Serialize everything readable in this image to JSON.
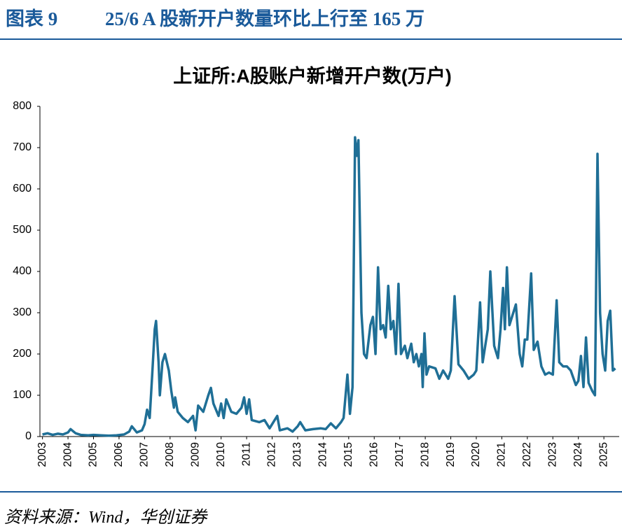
{
  "header": {
    "figure": "图表 9",
    "title": "25/6 A 股新开户数量环比上行至 165 万"
  },
  "chart_data": {
    "type": "line",
    "title": "上证所:A股账户新增开户数(万户)",
    "x": [
      2003.0,
      2003.2,
      2003.4,
      2003.6,
      2003.8,
      2004.0,
      2004.1,
      2004.3,
      2004.5,
      2004.8,
      2005.0,
      2005.3,
      2005.6,
      2005.9,
      2006.2,
      2006.4,
      2006.5,
      2006.7,
      2006.9,
      2007.0,
      2007.1,
      2007.2,
      2007.3,
      2007.4,
      2007.45,
      2007.55,
      2007.6,
      2007.7,
      2007.8,
      2007.95,
      2008.05,
      2008.15,
      2008.2,
      2008.3,
      2008.5,
      2008.7,
      2008.9,
      2009.0,
      2009.1,
      2009.3,
      2009.5,
      2009.6,
      2009.7,
      2009.9,
      2010.0,
      2010.1,
      2010.2,
      2010.4,
      2010.6,
      2010.8,
      2010.9,
      2011.0,
      2011.1,
      2011.2,
      2011.5,
      2011.7,
      2011.9,
      2012.0,
      2012.2,
      2012.3,
      2012.6,
      2012.8,
      2013.0,
      2013.1,
      2013.3,
      2013.6,
      2013.9,
      2014.1,
      2014.3,
      2014.5,
      2014.7,
      2014.8,
      2014.95,
      2015.05,
      2015.15,
      2015.25,
      2015.32,
      2015.38,
      2015.5,
      2015.6,
      2015.7,
      2015.85,
      2015.95,
      2016.05,
      2016.15,
      2016.25,
      2016.35,
      2016.45,
      2016.55,
      2016.65,
      2016.75,
      2016.85,
      2016.95,
      2017.05,
      2017.2,
      2017.3,
      2017.45,
      2017.55,
      2017.65,
      2017.75,
      2017.85,
      2017.9,
      2017.97,
      2018.05,
      2018.15,
      2018.4,
      2018.55,
      2018.7,
      2018.9,
      2019.0,
      2019.15,
      2019.3,
      2019.5,
      2019.7,
      2019.9,
      2020.0,
      2020.15,
      2020.25,
      2020.45,
      2020.55,
      2020.7,
      2020.85,
      2020.95,
      2021.05,
      2021.12,
      2021.2,
      2021.3,
      2021.45,
      2021.55,
      2021.7,
      2021.8,
      2021.9,
      2022.0,
      2022.15,
      2022.25,
      2022.4,
      2022.55,
      2022.7,
      2022.85,
      2023.0,
      2023.15,
      2023.25,
      2023.4,
      2023.55,
      2023.7,
      2023.9,
      2024.0,
      2024.1,
      2024.2,
      2024.3,
      2024.4,
      2024.55,
      2024.65,
      2024.75,
      2024.85,
      2024.95,
      2025.05,
      2025.15,
      2025.25,
      2025.35,
      2025.45
    ],
    "series": [
      {
        "name": "上证所:A股账户新增开户数",
        "color": "#1f6f96",
        "values": [
          5,
          8,
          4,
          7,
          5,
          10,
          18,
          8,
          4,
          3,
          4,
          3,
          2,
          3,
          5,
          12,
          25,
          10,
          15,
          30,
          65,
          45,
          150,
          260,
          280,
          180,
          100,
          180,
          200,
          160,
          110,
          70,
          95,
          60,
          45,
          35,
          50,
          15,
          75,
          60,
          100,
          118,
          80,
          50,
          80,
          45,
          90,
          60,
          55,
          70,
          95,
          55,
          90,
          40,
          35,
          40,
          20,
          30,
          50,
          15,
          20,
          12,
          25,
          35,
          15,
          18,
          20,
          18,
          32,
          20,
          35,
          45,
          150,
          55,
          120,
          725,
          680,
          718,
          300,
          200,
          190,
          270,
          290,
          200,
          410,
          260,
          270,
          240,
          365,
          260,
          280,
          200,
          370,
          200,
          220,
          190,
          225,
          180,
          200,
          170,
          200,
          120,
          250,
          150,
          170,
          165,
          140,
          160,
          140,
          160,
          340,
          175,
          160,
          140,
          150,
          160,
          325,
          180,
          260,
          400,
          220,
          190,
          260,
          360,
          260,
          410,
          270,
          300,
          320,
          200,
          170,
          235,
          235,
          395,
          210,
          230,
          170,
          150,
          155,
          150,
          330,
          180,
          170,
          170,
          160,
          125,
          135,
          195,
          120,
          240,
          130,
          110,
          100,
          685,
          300,
          200,
          160,
          280,
          305,
          160,
          165
        ]
      }
    ],
    "xlim": [
      2002.9,
      2025.6
    ],
    "xticks": [
      2003,
      2004,
      2005,
      2006,
      2007,
      2008,
      2009,
      2010,
      2011,
      2012,
      2013,
      2014,
      2015,
      2016,
      2017,
      2018,
      2019,
      2020,
      2021,
      2022,
      2023,
      2024,
      2025
    ],
    "ylim": [
      0,
      800
    ],
    "yticks": [
      0,
      100,
      200,
      300,
      400,
      500,
      600,
      700,
      800
    ]
  },
  "footer": {
    "source": "资料来源：Wind，华创证券"
  }
}
